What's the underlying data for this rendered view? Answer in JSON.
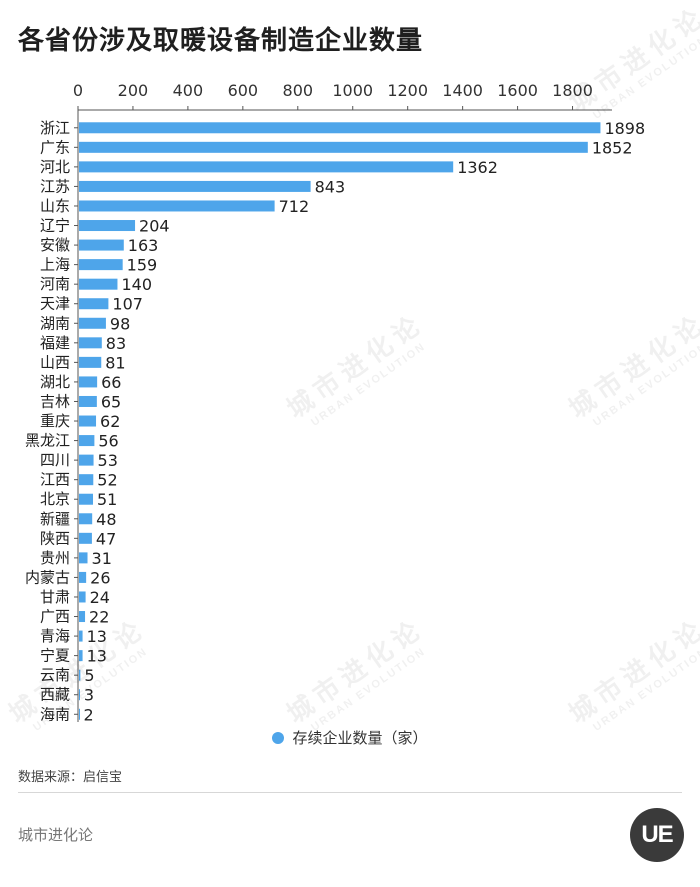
{
  "header": {
    "title": "各省份涉及取暖设备制造企业数量"
  },
  "chart_data": {
    "type": "bar",
    "orientation": "horizontal",
    "categories": [
      "浙江",
      "广东",
      "河北",
      "江苏",
      "山东",
      "辽宁",
      "安徽",
      "上海",
      "河南",
      "天津",
      "湖南",
      "福建",
      "山西",
      "湖北",
      "吉林",
      "重庆",
      "黑龙江",
      "四川",
      "江西",
      "北京",
      "新疆",
      "陕西",
      "贵州",
      "内蒙古",
      "甘肃",
      "广西",
      "青海",
      "宁夏",
      "云南",
      "西藏",
      "海南"
    ],
    "series": [
      {
        "name": "存续企业数量（家）",
        "values": [
          1898,
          1852,
          1362,
          843,
          712,
          204,
          163,
          159,
          140,
          107,
          98,
          83,
          81,
          66,
          65,
          62,
          56,
          53,
          52,
          51,
          48,
          47,
          31,
          26,
          24,
          22,
          13,
          13,
          5,
          3,
          2
        ]
      }
    ],
    "xlim": [
      0,
      1900
    ],
    "xticks": [
      0,
      200,
      400,
      600,
      800,
      1000,
      1200,
      1400,
      1600,
      1800
    ],
    "axis_position": "top",
    "grid": false,
    "legend_position": "bottom-center",
    "bar_color": "#4ea5ea"
  },
  "legend": {
    "label": "存续企业数量（家）"
  },
  "footer": {
    "source": "数据来源：启信宝",
    "brand": "城市进化论",
    "logo_text": "UE"
  },
  "watermark": {
    "text": "城市进化论",
    "subtext": "URBAN EVOLUTION"
  },
  "colors": {
    "bar": "#4ea5ea",
    "text": "#222222",
    "logo_bg": "#3a3a3a"
  }
}
